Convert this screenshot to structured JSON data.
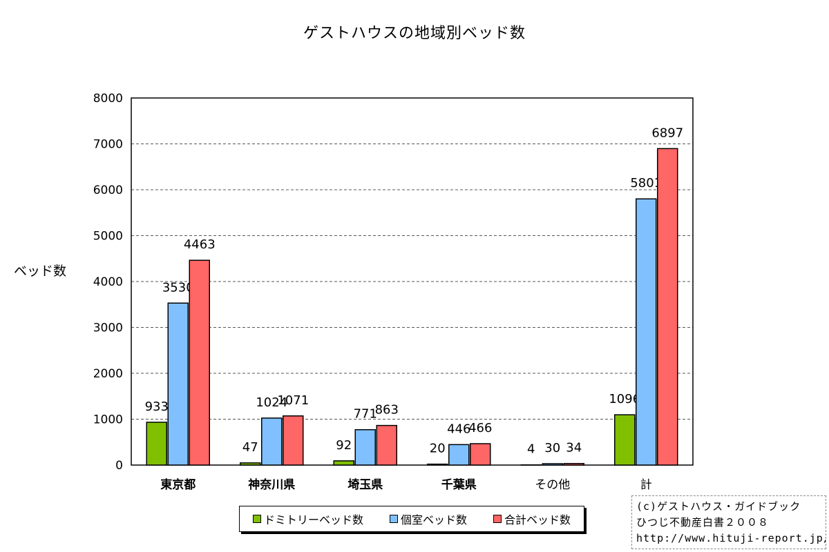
{
  "chart_data": {
    "type": "bar",
    "title": "ゲストハウスの地域別ベッド数",
    "ylabel": "ベッド数",
    "xlabel": "",
    "ylim": [
      0,
      8000
    ],
    "yticks": [
      0,
      1000,
      2000,
      3000,
      4000,
      5000,
      6000,
      7000,
      8000
    ],
    "grid": true,
    "categories": [
      "東京都",
      "神奈川県",
      "埼玉県",
      "千葉県",
      "その他",
      "計"
    ],
    "series": [
      {
        "name": "ドミトリーベッド数",
        "color": "#80c000",
        "values": [
          933,
          47,
          92,
          20,
          4,
          1096
        ]
      },
      {
        "name": "個室ベッド数",
        "color": "#80c0ff",
        "values": [
          3530,
          1024,
          771,
          446,
          30,
          5801
        ]
      },
      {
        "name": "合計ベッド数",
        "color": "#ff6666",
        "values": [
          4463,
          1071,
          863,
          466,
          34,
          6897
        ]
      }
    ],
    "legend_position": "bottom"
  },
  "credit": {
    "line1": "(c)ゲストハウス・ガイドブック",
    "line2": "ひつじ不動産白書２００８",
    "line3": "http://www.hituji-report.jp/"
  }
}
